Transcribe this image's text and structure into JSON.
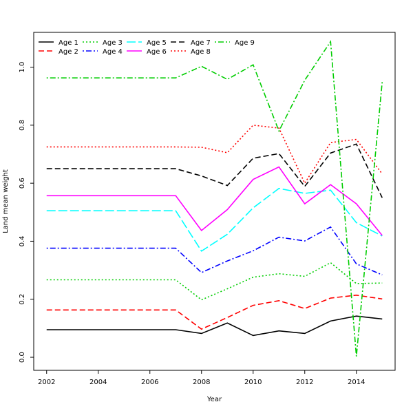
{
  "chart_data": {
    "type": "line",
    "title": "",
    "xlabel": "Year",
    "ylabel": "Land mean weight",
    "xlim": [
      2001.5,
      2015.5
    ],
    "ylim": [
      -0.045,
      1.12
    ],
    "x_ticks": [
      2002,
      2004,
      2006,
      2008,
      2010,
      2012,
      2014
    ],
    "y_ticks": [
      0.0,
      0.2,
      0.4,
      0.6,
      0.8,
      1.0
    ],
    "y_tick_labels": [
      "0.0",
      "0.2",
      "0.4",
      "0.6",
      "0.8",
      "1.0"
    ],
    "grid": false,
    "legend_position": "top-left",
    "x": [
      2002,
      2003,
      2004,
      2005,
      2006,
      2007,
      2008,
      2009,
      2010,
      2011,
      2012,
      2013,
      2014,
      2015
    ],
    "series": [
      {
        "name": "Age 1",
        "color": "#000000",
        "dash": "solid",
        "values": [
          0.095,
          0.095,
          0.095,
          0.095,
          0.095,
          0.095,
          0.082,
          0.118,
          0.075,
          0.091,
          0.082,
          0.125,
          0.142,
          0.132
        ]
      },
      {
        "name": "Age 2",
        "color": "#ff0000",
        "dash": "dashed",
        "values": [
          0.163,
          0.163,
          0.163,
          0.163,
          0.163,
          0.163,
          0.097,
          0.137,
          0.179,
          0.195,
          0.168,
          0.204,
          0.214,
          0.201
        ]
      },
      {
        "name": "Age 3",
        "color": "#00cd00",
        "dash": "dotted",
        "values": [
          0.267,
          0.267,
          0.267,
          0.267,
          0.267,
          0.267,
          0.198,
          0.236,
          0.276,
          0.288,
          0.279,
          0.326,
          0.254,
          0.256
        ]
      },
      {
        "name": "Age 4",
        "color": "#0000ff",
        "dash": "dotdash",
        "values": [
          0.376,
          0.376,
          0.376,
          0.376,
          0.376,
          0.376,
          0.292,
          0.332,
          0.367,
          0.414,
          0.401,
          0.449,
          0.322,
          0.284
        ]
      },
      {
        "name": "Age 5",
        "color": "#00ffff",
        "dash": "longdash",
        "values": [
          0.505,
          0.505,
          0.505,
          0.505,
          0.505,
          0.505,
          0.366,
          0.424,
          0.515,
          0.582,
          0.565,
          0.576,
          0.464,
          0.418
        ]
      },
      {
        "name": "Age 6",
        "color": "#ff00ff",
        "dash": "solid",
        "values": [
          0.557,
          0.557,
          0.557,
          0.557,
          0.557,
          0.557,
          0.437,
          0.509,
          0.613,
          0.656,
          0.529,
          0.595,
          0.529,
          0.42
        ]
      },
      {
        "name": "Age 7",
        "color": "#000000",
        "dash": "dashed",
        "values": [
          0.65,
          0.65,
          0.65,
          0.65,
          0.65,
          0.65,
          0.625,
          0.592,
          0.686,
          0.702,
          0.589,
          0.704,
          0.735,
          0.55
        ]
      },
      {
        "name": "Age 8",
        "color": "#ff0000",
        "dash": "dotted",
        "values": [
          0.725,
          0.725,
          0.725,
          0.725,
          0.725,
          0.725,
          0.724,
          0.705,
          0.8,
          0.79,
          0.6,
          0.74,
          0.751,
          0.632
        ]
      },
      {
        "name": "Age 9",
        "color": "#00cd00",
        "dash": "dotdash",
        "values": [
          0.963,
          0.963,
          0.963,
          0.963,
          0.963,
          0.963,
          1.003,
          0.958,
          1.008,
          0.78,
          0.955,
          1.088,
          0.003,
          0.949
        ]
      }
    ]
  }
}
